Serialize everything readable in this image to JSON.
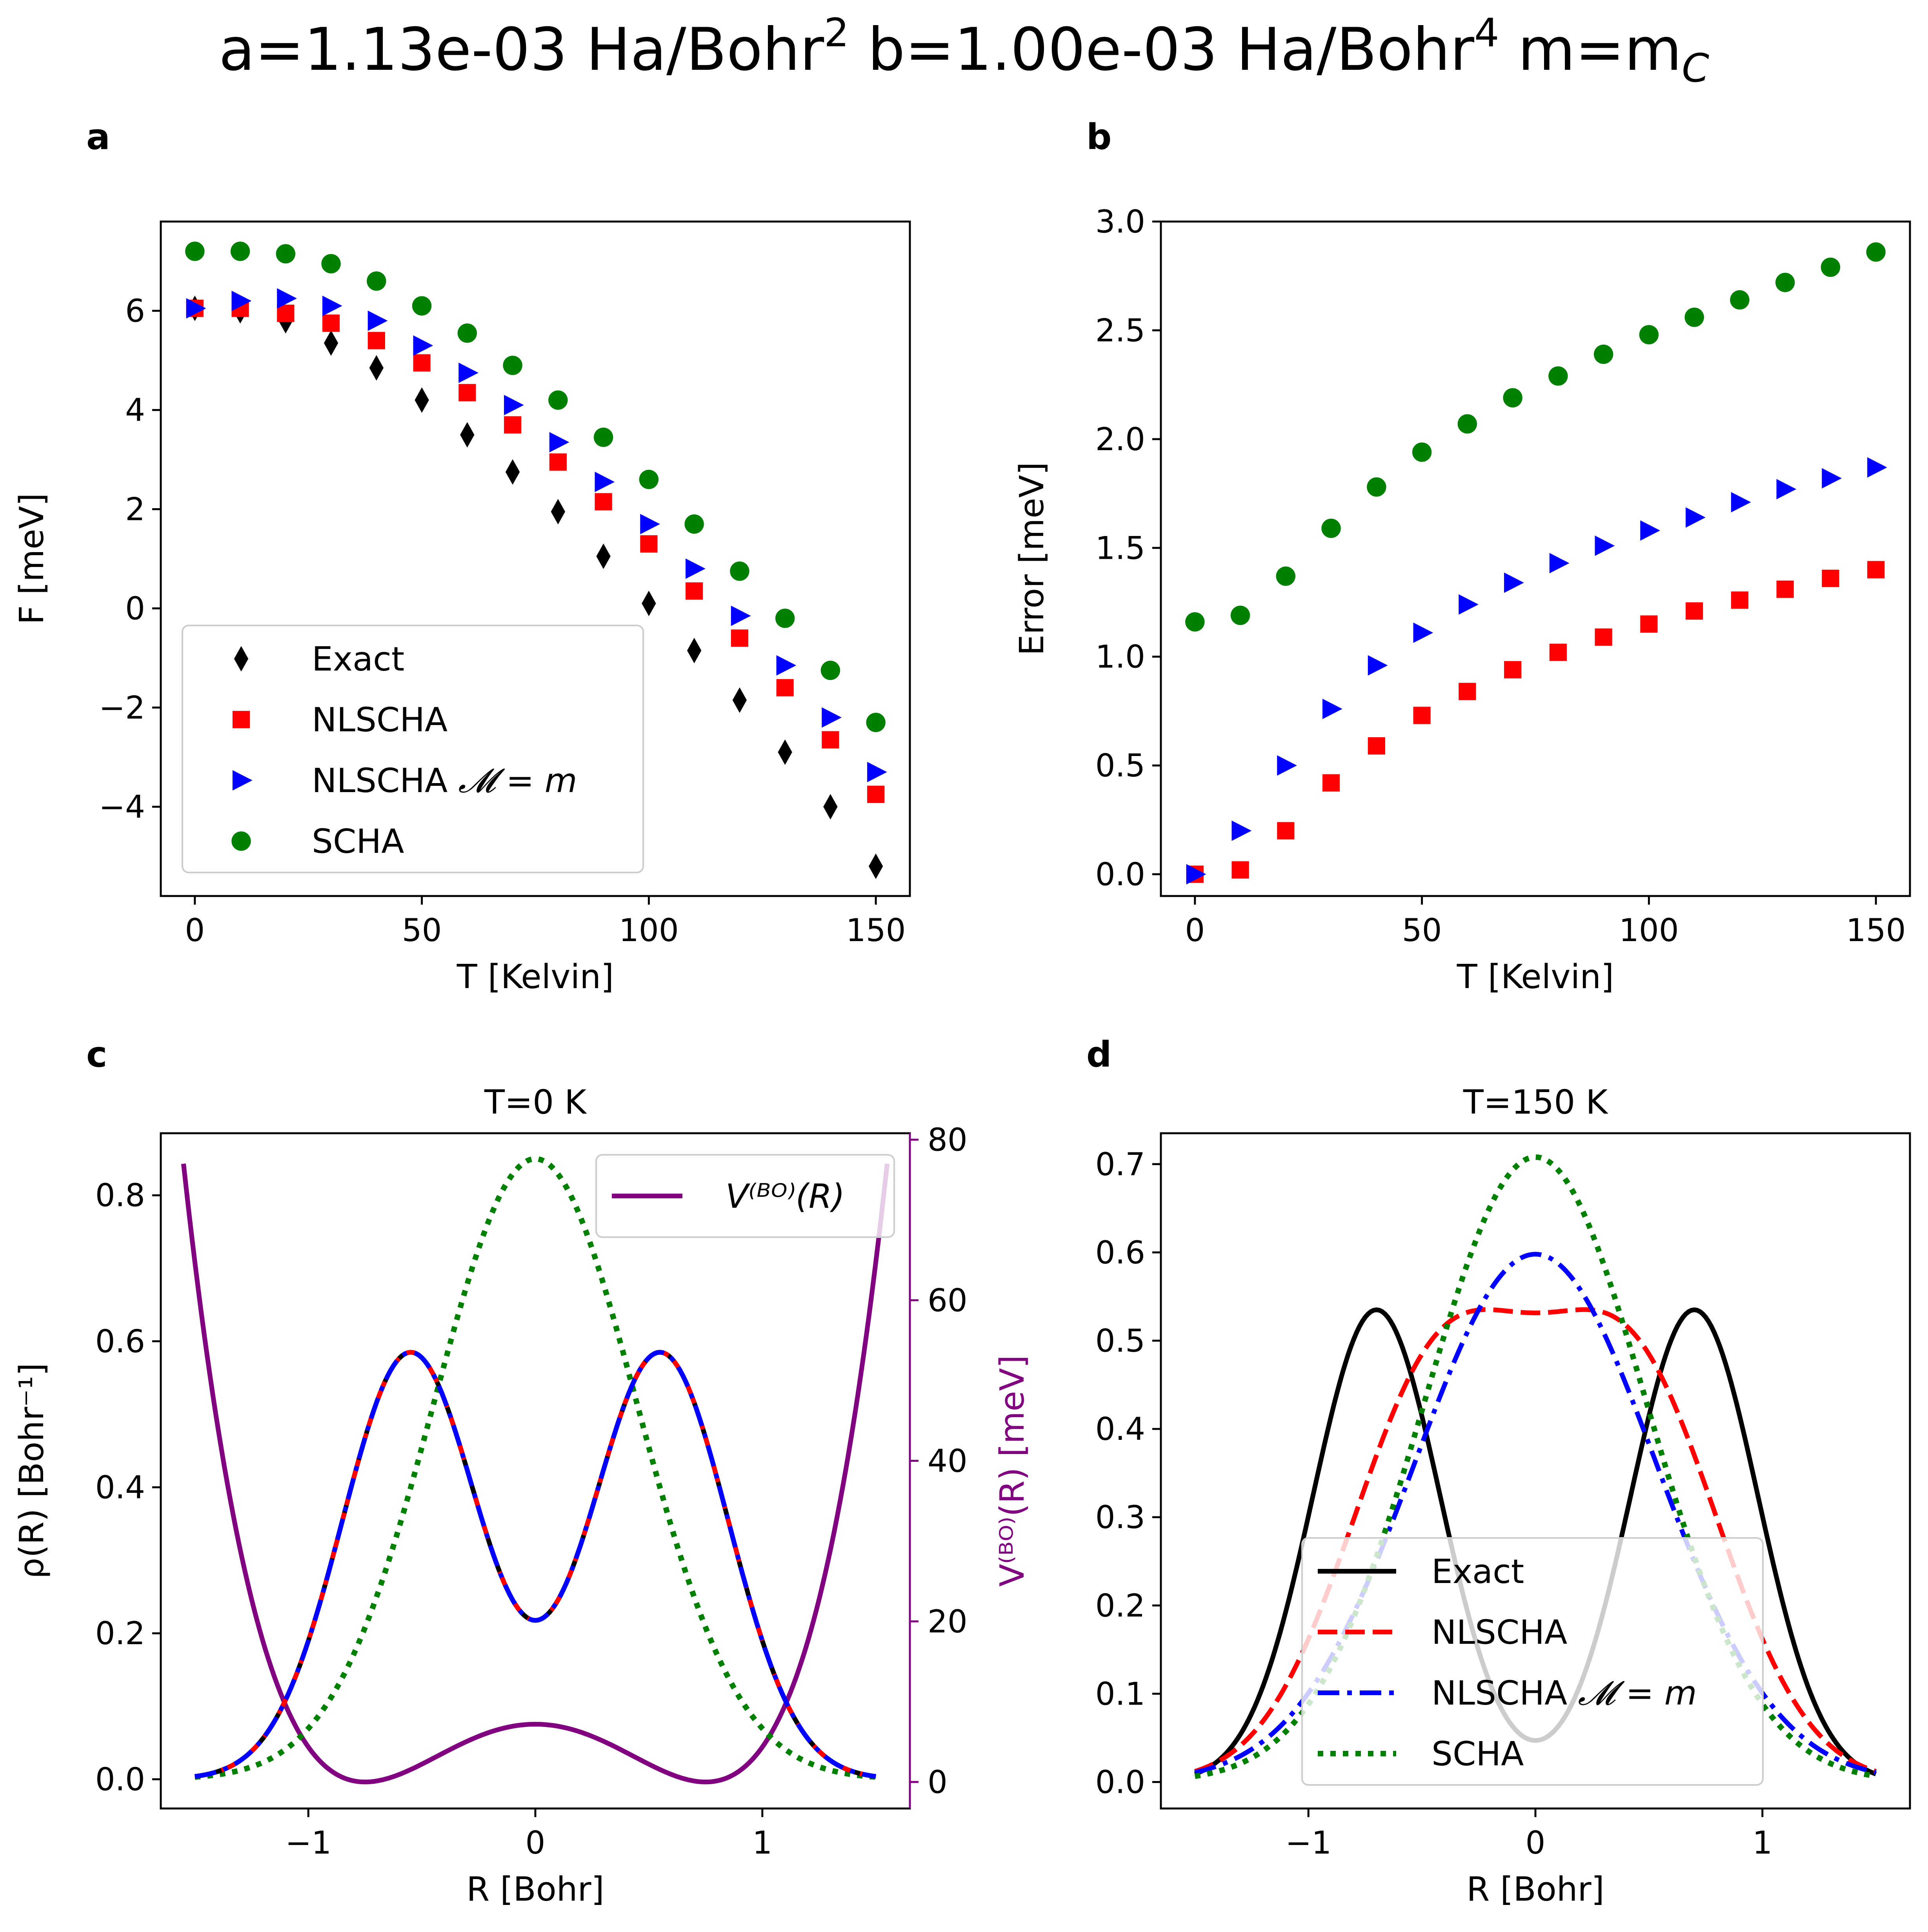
{
  "figure": {
    "title_parts": {
      "a": "a=1.13e-03 Ha/Bohr",
      "a_exp": "2",
      "b": " b=1.00e-03 Ha/Bohr",
      "b_exp": "4",
      "m": " m=m",
      "m_sub": "C"
    }
  },
  "colors": {
    "exact": "#000000",
    "nlscha": "#ff0000",
    "nlscha_mm": "#0000ff",
    "scha": "#008000",
    "vbo": "#800080"
  },
  "chart_data": [
    {
      "panel": "a",
      "type": "scatter",
      "title": "",
      "xlabel": "T [Kelvin]",
      "ylabel": "F [meV]",
      "xlim": [
        -7.5,
        157.5
      ],
      "ylim": [
        -5.8,
        7.8
      ],
      "xticks": [
        0,
        50,
        100,
        150
      ],
      "xtick_labels": [
        "0",
        "50",
        "100",
        "150"
      ],
      "yticks": [
        -4,
        -2,
        0,
        2,
        4,
        6
      ],
      "ytick_labels": [
        "−4",
        "−2",
        "0",
        "2",
        "4",
        "6"
      ],
      "legend_position": "lower-left",
      "x": [
        0,
        10,
        20,
        30,
        40,
        50,
        60,
        70,
        80,
        90,
        100,
        110,
        120,
        130,
        140,
        150
      ],
      "series": [
        {
          "name": "Exact",
          "marker": "diamond",
          "color": "#000000",
          "values": [
            6.05,
            6.0,
            5.8,
            5.35,
            4.85,
            4.2,
            3.5,
            2.75,
            1.95,
            1.05,
            0.1,
            -0.85,
            -1.85,
            -2.9,
            -4.0,
            -5.2
          ]
        },
        {
          "name": "NLSCHA",
          "marker": "square",
          "color": "#ff0000",
          "values": [
            6.05,
            6.05,
            5.95,
            5.75,
            5.4,
            4.95,
            4.35,
            3.7,
            2.95,
            2.15,
            1.3,
            0.35,
            -0.6,
            -1.6,
            -2.65,
            -3.75
          ]
        },
        {
          "name": "NLSCHA",
          "name_math": "𝓜 = m",
          "marker": "triangle-right",
          "color": "#0000ff",
          "values": [
            6.05,
            6.2,
            6.25,
            6.1,
            5.8,
            5.3,
            4.75,
            4.1,
            3.35,
            2.55,
            1.7,
            0.8,
            -0.15,
            -1.15,
            -2.2,
            -3.3
          ]
        },
        {
          "name": "SCHA",
          "marker": "circle",
          "color": "#008000",
          "values": [
            7.2,
            7.2,
            7.15,
            6.95,
            6.6,
            6.1,
            5.55,
            4.9,
            4.2,
            3.45,
            2.6,
            1.7,
            0.75,
            -0.2,
            -1.25,
            -2.3
          ]
        }
      ]
    },
    {
      "panel": "b",
      "type": "scatter",
      "title": "",
      "xlabel": "T [Kelvin]",
      "ylabel": "Error [meV]",
      "xlim": [
        -7.5,
        157.5
      ],
      "ylim": [
        -0.1,
        3.0
      ],
      "xticks": [
        0,
        50,
        100,
        150
      ],
      "xtick_labels": [
        "0",
        "50",
        "100",
        "150"
      ],
      "yticks": [
        0.0,
        0.5,
        1.0,
        1.5,
        2.0,
        2.5,
        3.0
      ],
      "ytick_labels": [
        "0.0",
        "0.5",
        "1.0",
        "1.5",
        "2.0",
        "2.5",
        "3.0"
      ],
      "x": [
        0,
        10,
        20,
        30,
        40,
        50,
        60,
        70,
        80,
        90,
        100,
        110,
        120,
        130,
        140,
        150
      ],
      "series": [
        {
          "name": "NLSCHA",
          "marker": "square",
          "color": "#ff0000",
          "values": [
            0.0,
            0.02,
            0.2,
            0.42,
            0.59,
            0.73,
            0.84,
            0.94,
            1.02,
            1.09,
            1.15,
            1.21,
            1.26,
            1.31,
            1.36,
            1.4
          ]
        },
        {
          "name": "NLSCHA 𝓜 = m",
          "marker": "triangle-right",
          "color": "#0000ff",
          "values": [
            0.0,
            0.2,
            0.5,
            0.76,
            0.96,
            1.11,
            1.24,
            1.34,
            1.43,
            1.51,
            1.58,
            1.64,
            1.71,
            1.77,
            1.82,
            1.87
          ]
        },
        {
          "name": "SCHA",
          "marker": "circle",
          "color": "#008000",
          "values": [
            1.16,
            1.19,
            1.37,
            1.59,
            1.78,
            1.94,
            2.07,
            2.19,
            2.29,
            2.39,
            2.48,
            2.56,
            2.64,
            2.72,
            2.79,
            2.86
          ]
        }
      ]
    },
    {
      "panel": "c",
      "type": "line",
      "title": "T=0 K",
      "xlabel": "R [Bohr]",
      "ylabel": "ρ(R) [Bohr⁻¹]",
      "ylabel_right": "V⁽ᴮᴼ⁾(R) [meV]",
      "xlim": [
        -1.65,
        1.65
      ],
      "ylim": [
        -0.04,
        0.885
      ],
      "ylim_right": [
        -3.3,
        80.8
      ],
      "xticks": [
        -1,
        0,
        1
      ],
      "xtick_labels": [
        "−1",
        "0",
        "1"
      ],
      "yticks": [
        0.0,
        0.2,
        0.4,
        0.6,
        0.8
      ],
      "ytick_labels": [
        "0.0",
        "0.2",
        "0.4",
        "0.6",
        "0.8"
      ],
      "yticks_right": [
        0,
        20,
        40,
        60,
        80
      ],
      "ytick_labels_right": [
        "0",
        "20",
        "40",
        "60",
        "80"
      ],
      "legend_position": "upper-right",
      "legend_label": "V⁽ᴮᴼ⁾(R)",
      "curves": {
        "exact_nlscha_nlschamm": {
          "type": "two-gaussian",
          "mu": 0.55,
          "sigma": 0.3,
          "peak": 0.585,
          "center": 0.45
        },
        "scha": {
          "type": "gaussian",
          "mu": 0,
          "sigma": 0.447,
          "peak": 0.85
        },
        "vbo": {
          "type": "double-well-meV",
          "a": 0.00113,
          "b": 0.001,
          "barrier": 8.7,
          "value_at_1.55": 77
        }
      },
      "series_styles": [
        {
          "name": "Exact",
          "color": "#000000",
          "dash": "solid"
        },
        {
          "name": "NLSCHA",
          "color": "#ff0000",
          "dash": "dashed"
        },
        {
          "name": "NLSCHA 𝓜 = m",
          "color": "#0000ff",
          "dash": "dashdot"
        },
        {
          "name": "SCHA",
          "color": "#008000",
          "dash": "dotted"
        },
        {
          "name": "V⁽ᴮᴼ⁾(R)",
          "color": "#800080",
          "dash": "solid",
          "axis": "right"
        }
      ]
    },
    {
      "panel": "d",
      "type": "line",
      "title": "T=150 K",
      "xlabel": "R [Bohr]",
      "ylabel": "",
      "xlim": [
        -1.65,
        1.65
      ],
      "ylim": [
        -0.03,
        0.735
      ],
      "xticks": [
        -1,
        0,
        1
      ],
      "xtick_labels": [
        "−1",
        "0",
        "1"
      ],
      "yticks": [
        0.0,
        0.1,
        0.2,
        0.3,
        0.4,
        0.5,
        0.6,
        0.7
      ],
      "ytick_labels": [
        "0.0",
        "0.1",
        "0.2",
        "0.3",
        "0.4",
        "0.5",
        "0.6",
        "0.7"
      ],
      "legend_position": "lower-center",
      "series": [
        {
          "name": "Exact",
          "color": "#000000",
          "dash": "solid",
          "shape": {
            "type": "two-gaussian",
            "mu": 0.7,
            "sigma": 0.28,
            "peak": 0.535
          }
        },
        {
          "name": "NLSCHA",
          "color": "#ff0000",
          "dash": "dashed",
          "shape": {
            "type": "two-gaussian",
            "mu": 0.42,
            "sigma": 0.4,
            "peak": 0.512
          }
        },
        {
          "name": "NLSCHA",
          "name_math": "𝓜 = m",
          "color": "#0000ff",
          "dash": "dashdot",
          "shape": {
            "type": "gaussian",
            "mu": 0,
            "sigma": 0.53,
            "peak": 0.598
          }
        },
        {
          "name": "SCHA",
          "color": "#008000",
          "dash": "dotted",
          "shape": {
            "type": "gaussian",
            "mu": 0,
            "sigma": 0.49,
            "peak": 0.708
          }
        }
      ]
    }
  ],
  "panel_labels": [
    "a",
    "b",
    "c",
    "d"
  ]
}
